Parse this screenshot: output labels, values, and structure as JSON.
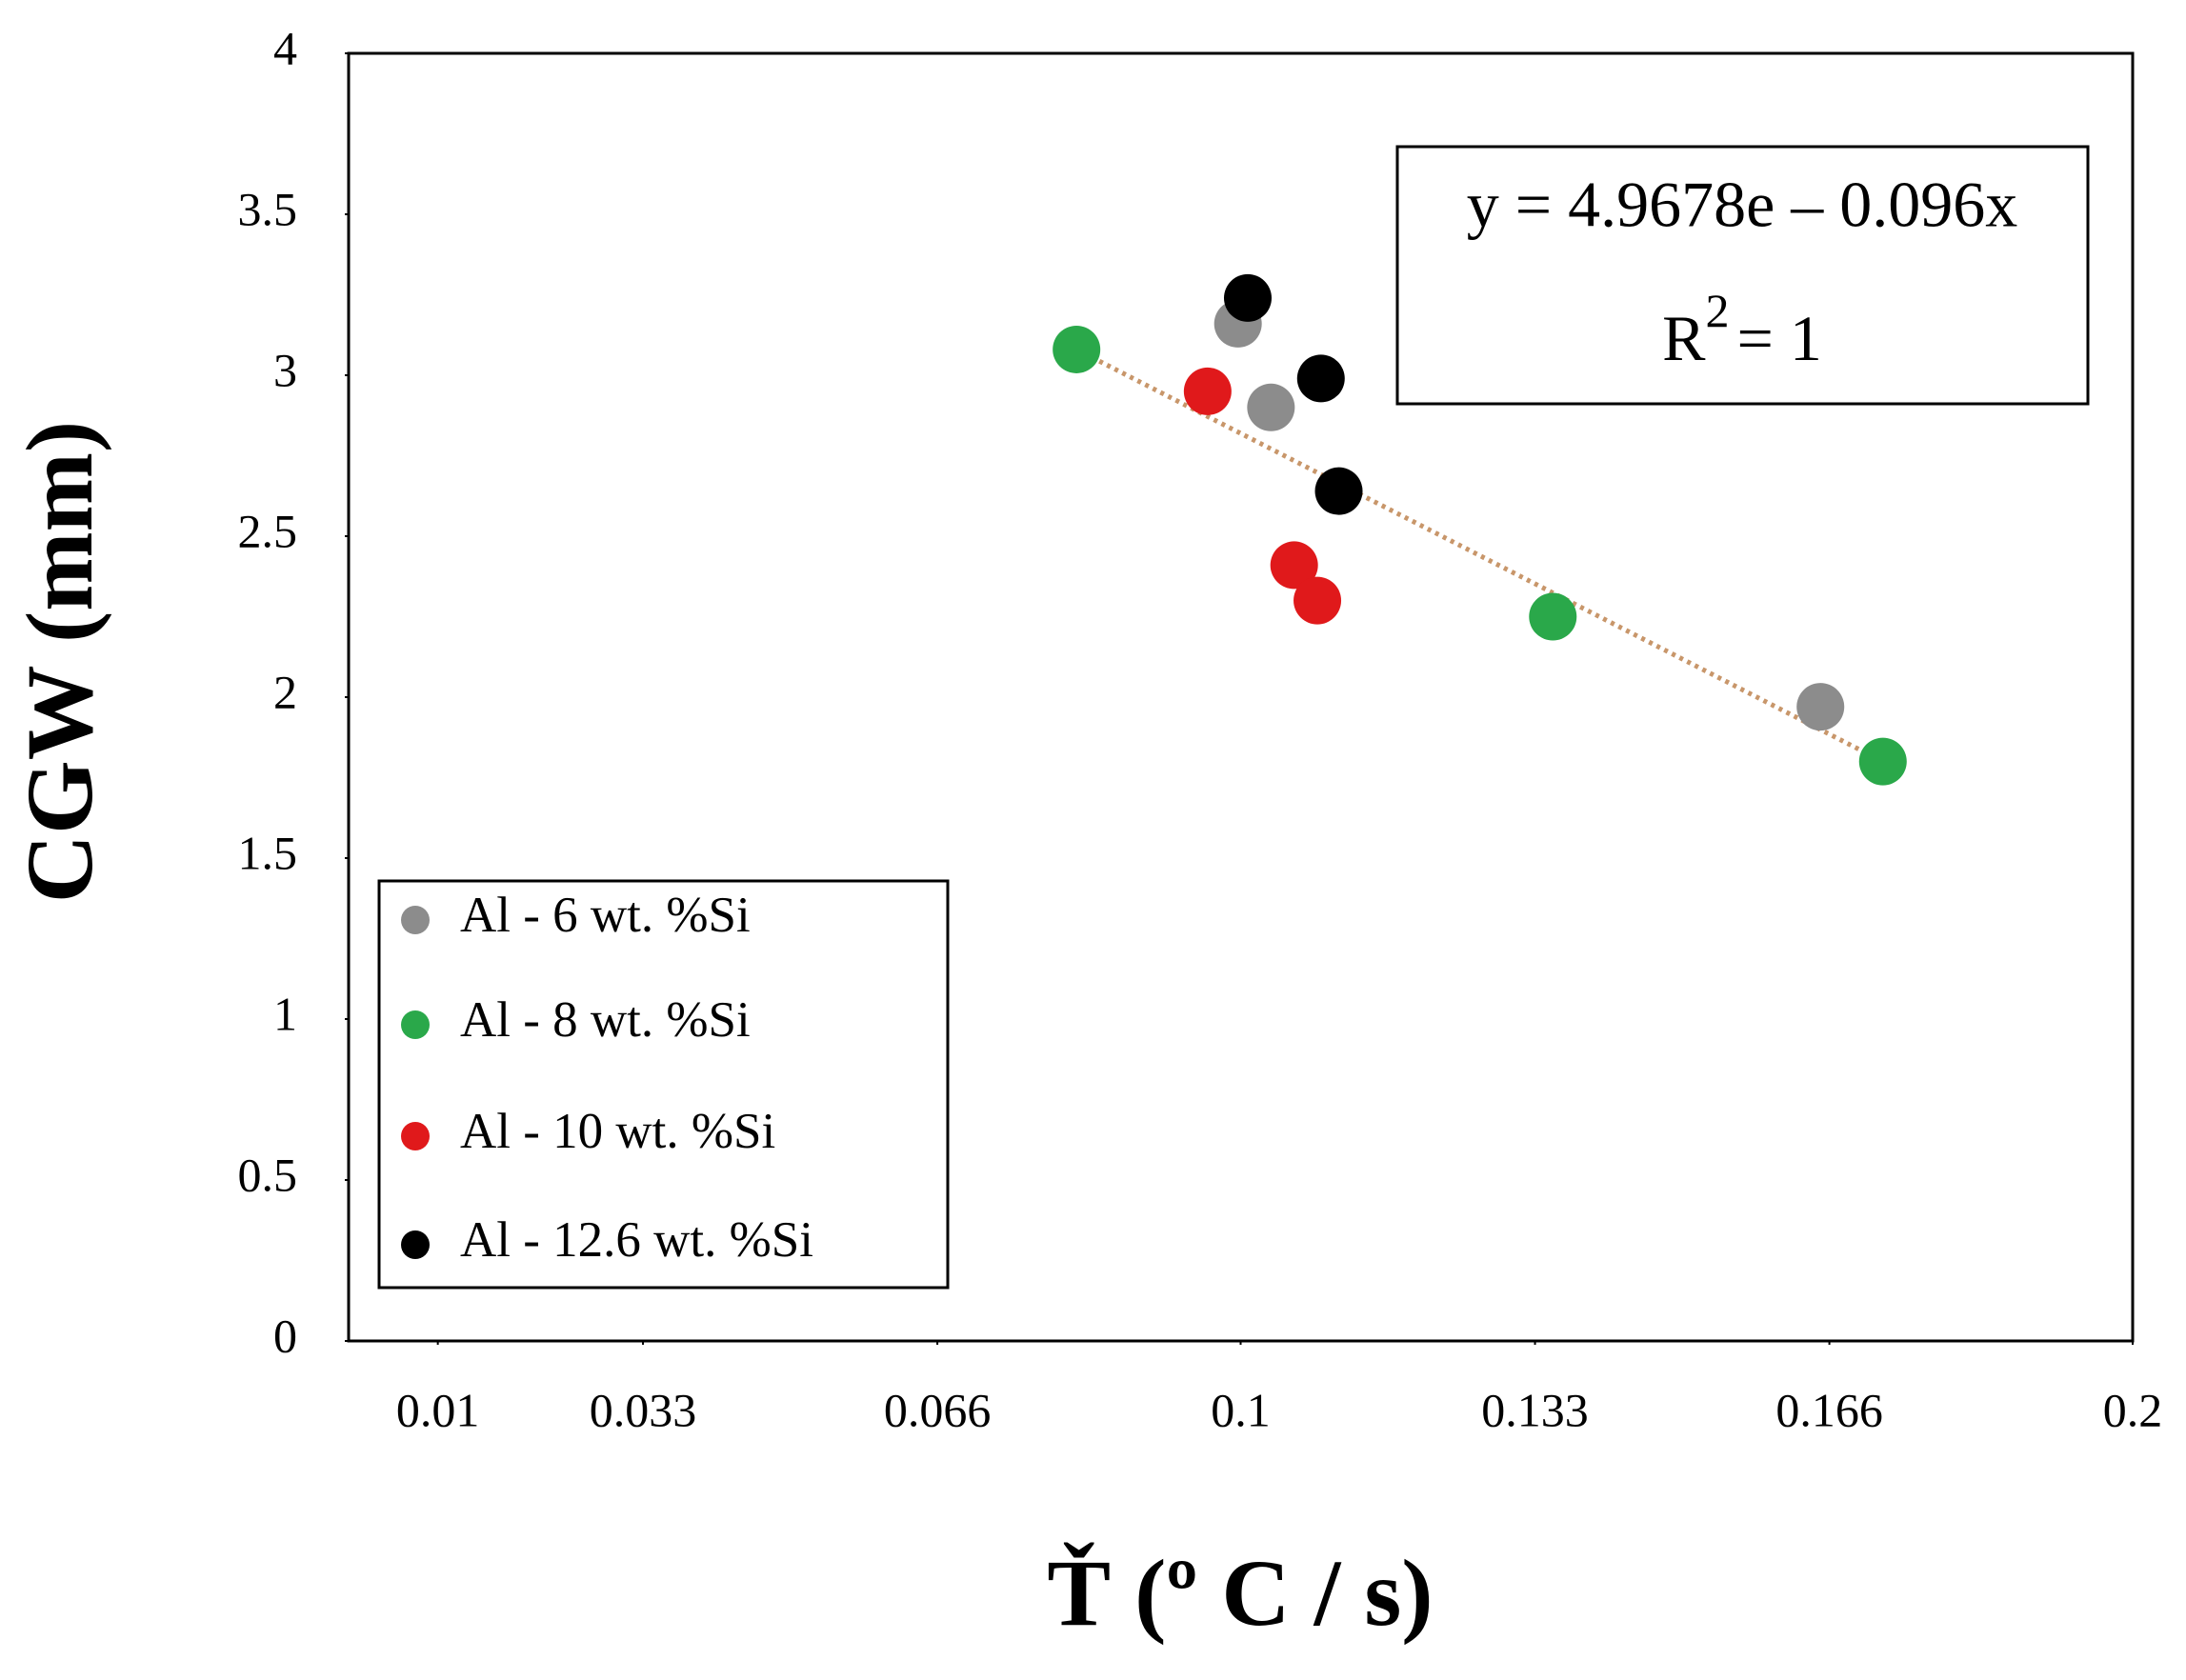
{
  "chart_data": {
    "type": "scatter",
    "x_label": "Ť (º C / s)",
    "y_label": "CGW (mm)",
    "xlim": [
      0,
      0.2
    ],
    "xticks": [
      0.01,
      0.033,
      0.066,
      0.1,
      0.133,
      0.166,
      0.2
    ],
    "ylim": [
      0,
      4
    ],
    "yticks": [
      0,
      0.5,
      1,
      1.5,
      2,
      2.5,
      3,
      3.5,
      4
    ],
    "grid": false,
    "legend": "lower left",
    "series": [
      {
        "name": "Al - 6 wt. %Si",
        "color": "#8c8c8c",
        "x": [
          0.0997,
          0.1034,
          0.165
        ],
        "values": [
          3.16,
          2.9,
          1.97
        ]
      },
      {
        "name": "Al - 8 wt. %Si",
        "color": "#2aa84a",
        "x": [
          0.0816,
          0.135,
          0.172
        ],
        "values": [
          3.08,
          2.25,
          1.8
        ]
      },
      {
        "name": "Al - 10 wt. %Si",
        "color": "#e0191b",
        "x": [
          0.0963,
          0.106,
          0.1086
        ],
        "values": [
          2.95,
          2.41,
          2.3
        ]
      },
      {
        "name": "Al - 12.6 wt. %Si",
        "color": "#000000",
        "x": [
          0.1008,
          0.109,
          0.111
        ],
        "values": [
          3.24,
          2.99,
          2.64
        ]
      }
    ],
    "annotation": {
      "equation": "y = 4.9678e – 0.096x",
      "r_base": "R",
      "r_sup": "2",
      "r_rest": "= 1"
    }
  }
}
